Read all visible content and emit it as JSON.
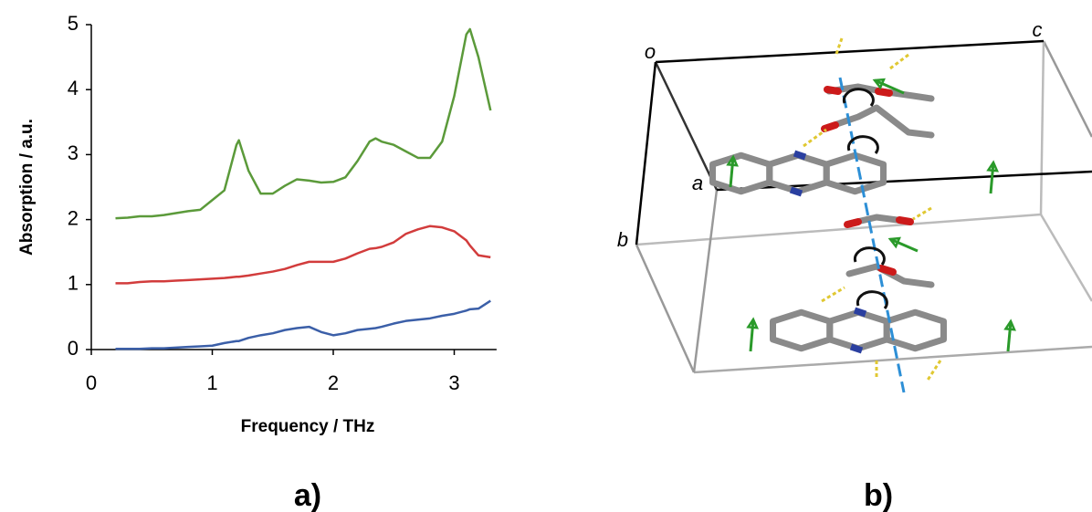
{
  "chart_data": {
    "type": "line",
    "x_label": "Frequency / THz",
    "y_label": "Absorption / a.u.",
    "x": [
      0.2,
      0.3,
      0.4,
      0.5,
      0.6,
      0.7,
      0.8,
      0.9,
      1.0,
      1.1,
      1.2,
      1.22,
      1.3,
      1.4,
      1.5,
      1.6,
      1.7,
      1.8,
      1.9,
      2.0,
      2.1,
      2.2,
      2.3,
      2.35,
      2.4,
      2.5,
      2.6,
      2.7,
      2.8,
      2.9,
      3.0,
      3.1,
      3.13,
      3.2,
      3.3
    ],
    "series": [
      {
        "color": "#5b9a3a",
        "values": [
          2.02,
          2.03,
          2.05,
          2.05,
          2.07,
          2.1,
          2.13,
          2.15,
          2.3,
          2.45,
          3.15,
          3.22,
          2.75,
          2.4,
          2.4,
          2.52,
          2.62,
          2.6,
          2.57,
          2.58,
          2.65,
          2.9,
          3.2,
          3.25,
          3.2,
          3.15,
          3.05,
          2.95,
          2.95,
          3.2,
          3.9,
          4.85,
          4.93,
          4.5,
          3.68
        ]
      },
      {
        "color": "#d23c3c",
        "values": [
          1.02,
          1.02,
          1.04,
          1.05,
          1.05,
          1.06,
          1.07,
          1.08,
          1.09,
          1.1,
          1.12,
          1.12,
          1.14,
          1.17,
          1.2,
          1.24,
          1.3,
          1.35,
          1.35,
          1.35,
          1.4,
          1.48,
          1.55,
          1.56,
          1.58,
          1.65,
          1.78,
          1.85,
          1.9,
          1.88,
          1.82,
          1.68,
          1.6,
          1.45,
          1.42
        ]
      },
      {
        "color": "#3b5fa8",
        "values": [
          0.01,
          0.01,
          0.01,
          0.02,
          0.02,
          0.03,
          0.04,
          0.05,
          0.06,
          0.1,
          0.13,
          0.13,
          0.18,
          0.22,
          0.25,
          0.3,
          0.33,
          0.35,
          0.27,
          0.22,
          0.25,
          0.3,
          0.32,
          0.33,
          0.35,
          0.4,
          0.44,
          0.46,
          0.48,
          0.52,
          0.55,
          0.6,
          0.62,
          0.63,
          0.75
        ]
      }
    ],
    "xlim": [
      0,
      3.35
    ],
    "xticks": [
      0,
      1,
      2,
      3
    ],
    "ylim": [
      0,
      5
    ],
    "yticks": [
      0,
      1,
      2,
      3,
      4,
      5
    ],
    "grid": false
  },
  "panels": [
    "a)",
    "b)"
  ],
  "diagram": {
    "axis_labels": [
      "o",
      "c",
      "a",
      "b"
    ]
  }
}
